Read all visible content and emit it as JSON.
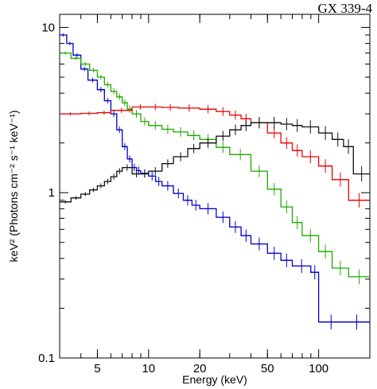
{
  "chart_data": {
    "type": "line",
    "title": "GX 339-4",
    "xlabel": "Energy (keV)",
    "ylabel": "keV² (Photons cm⁻² s⁻¹ keV⁻¹)",
    "x_scale": "log",
    "y_scale": "log",
    "xlim": [
      3,
      200
    ],
    "ylim": [
      0.1,
      12
    ],
    "x_ticks": [
      {
        "value": 5,
        "label": "5"
      },
      {
        "value": 10,
        "label": "10"
      },
      {
        "value": 20,
        "label": "20"
      },
      {
        "value": 50,
        "label": "50"
      },
      {
        "value": 100,
        "label": "100"
      }
    ],
    "y_ticks": [
      {
        "value": 0.1,
        "label": "0.1"
      },
      {
        "value": 1,
        "label": "1"
      },
      {
        "value": 10,
        "label": "10"
      }
    ],
    "grid": false,
    "legend": "none",
    "series": [
      {
        "color": "#0000cc",
        "x": [
          3,
          3.3,
          3.6,
          4,
          4.4,
          5,
          5.5,
          6,
          6.5,
          7,
          7.5,
          8,
          8.5,
          9,
          10,
          11,
          12,
          14,
          16,
          18,
          20,
          25,
          30,
          35,
          40,
          50,
          60,
          70,
          90,
          100,
          140,
          200
        ],
        "y": [
          9,
          8,
          6.8,
          5.6,
          4.8,
          4.2,
          3.6,
          3.0,
          2.4,
          1.9,
          1.6,
          1.42,
          1.36,
          1.31,
          1.26,
          1.17,
          1.1,
          0.99,
          0.9,
          0.84,
          0.8,
          0.71,
          0.62,
          0.55,
          0.49,
          0.43,
          0.39,
          0.36,
          0.33,
          0.165,
          0.165,
          0.165
        ]
      },
      {
        "color": "#22aa00",
        "x": [
          3,
          3.5,
          4,
          4.5,
          5,
          5.5,
          6,
          6.5,
          7,
          7.5,
          8,
          9,
          10,
          12,
          14,
          17,
          20,
          25,
          30,
          40,
          50,
          60,
          70,
          80,
          100,
          120,
          150,
          200
        ],
        "y": [
          7,
          6.5,
          6.0,
          5.5,
          5.0,
          4.5,
          4.1,
          3.8,
          3.5,
          3.2,
          3.0,
          2.7,
          2.55,
          2.42,
          2.33,
          2.22,
          2.1,
          1.88,
          1.7,
          1.35,
          1.05,
          0.82,
          0.66,
          0.55,
          0.44,
          0.35,
          0.31,
          0.31
        ]
      },
      {
        "color": "#ee0000",
        "x": [
          3,
          4,
          5,
          6,
          8,
          10,
          12,
          15,
          20,
          25,
          30,
          35,
          40,
          50,
          60,
          70,
          80,
          100,
          120,
          150,
          200
        ],
        "y": [
          3.0,
          3.02,
          3.05,
          3.15,
          3.3,
          3.3,
          3.28,
          3.25,
          3.2,
          3.1,
          2.95,
          2.8,
          2.65,
          2.3,
          2.0,
          1.8,
          1.65,
          1.45,
          1.2,
          0.9,
          0.9
        ]
      },
      {
        "color": "#111111",
        "x": [
          3,
          3.5,
          4,
          4.5,
          5,
          5.5,
          6,
          6.5,
          7,
          8,
          9,
          10,
          12,
          14,
          17,
          20,
          25,
          30,
          35,
          40,
          50,
          60,
          70,
          80,
          100,
          120,
          140,
          160,
          200
        ],
        "y": [
          0.88,
          0.93,
          0.98,
          1.04,
          1.1,
          1.17,
          1.25,
          1.35,
          1.42,
          1.3,
          1.3,
          1.35,
          1.5,
          1.65,
          1.85,
          2.0,
          2.2,
          2.4,
          2.55,
          2.65,
          2.65,
          2.6,
          2.55,
          2.5,
          2.3,
          2.1,
          1.9,
          1.3,
          1.3
        ]
      }
    ]
  }
}
